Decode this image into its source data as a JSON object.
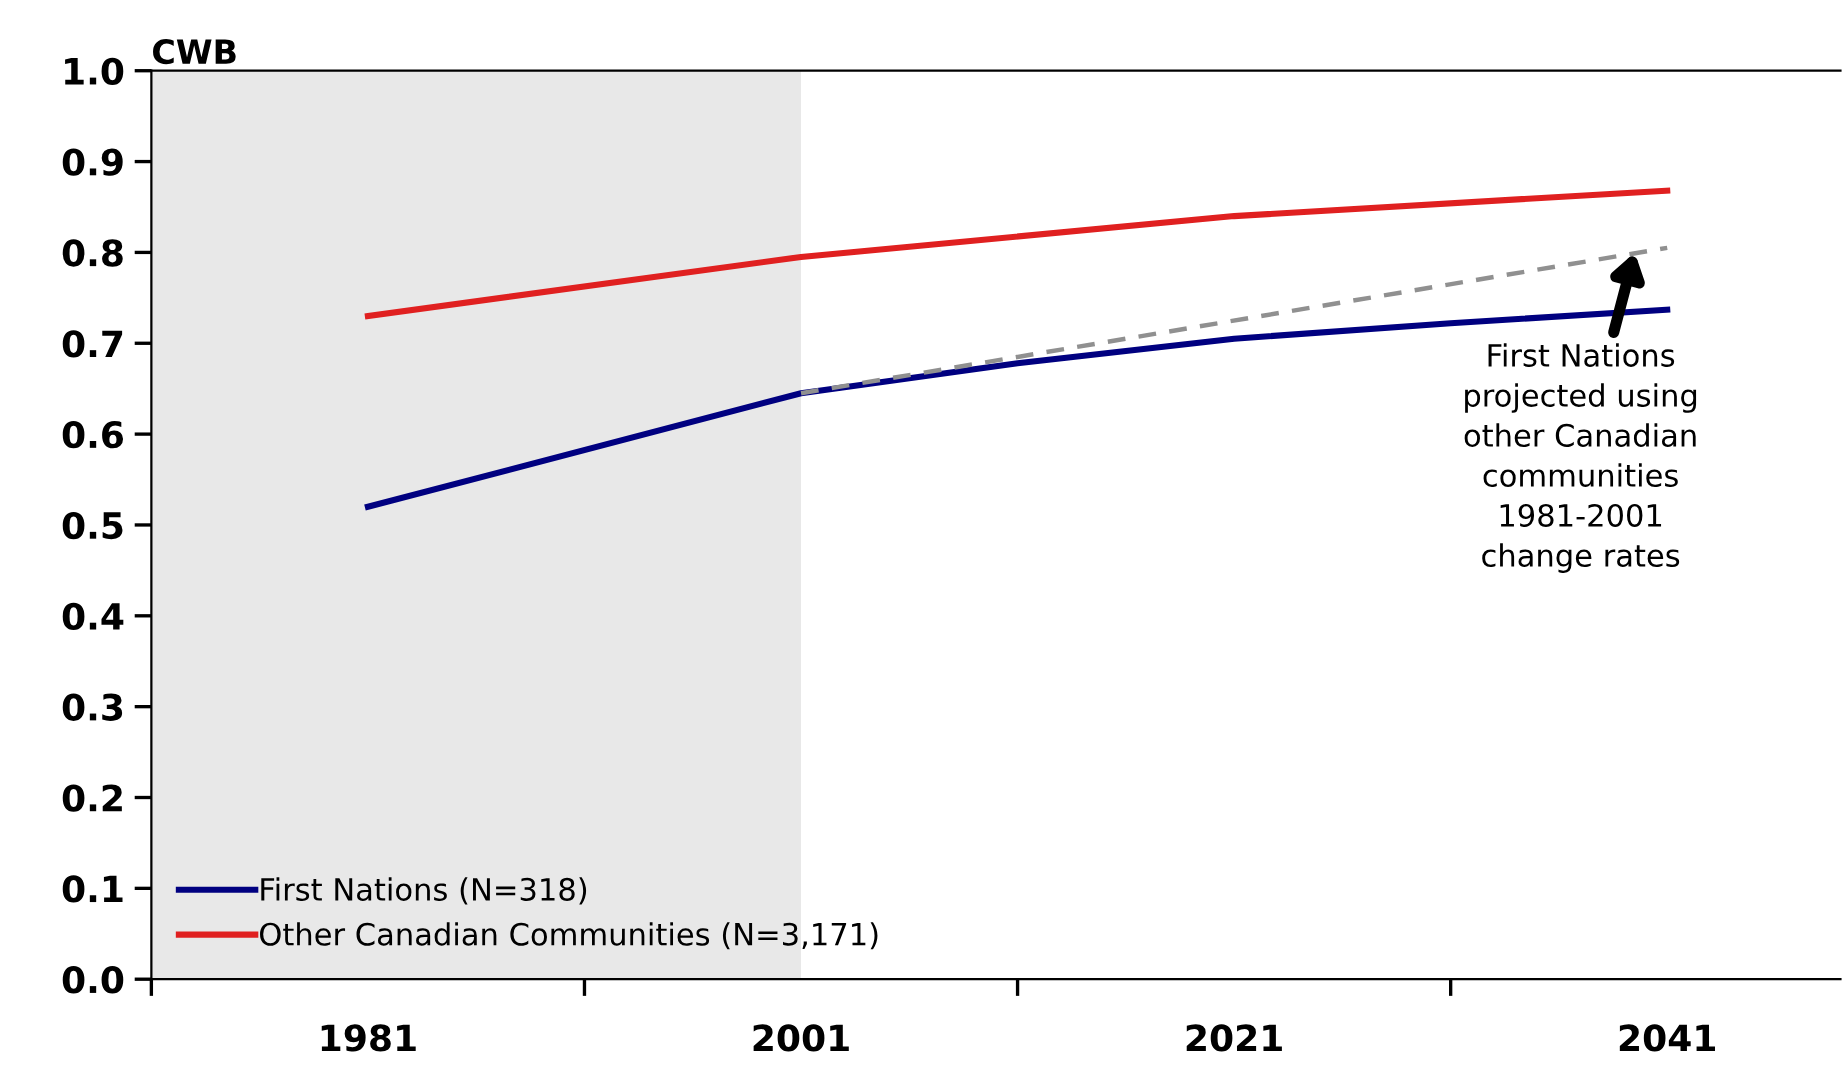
{
  "chart_data": {
    "type": "line",
    "ylabel": "CWB",
    "x": [
      1981,
      2001,
      2011,
      2021,
      2031,
      2041
    ],
    "series": [
      {
        "name": "First Nations (N=318)",
        "color": "#000080",
        "values": [
          0.52,
          0.645,
          0.678,
          0.705,
          0.722,
          0.737
        ]
      },
      {
        "name": "Other Canadian Communities (N=3,171)",
        "color": "#e02020",
        "x": [
          1981,
          2001,
          2021,
          2041
        ],
        "values": [
          0.73,
          0.795,
          0.84,
          0.868
        ]
      },
      {
        "color": "#909090",
        "line_style": "dashed",
        "x": [
          2001,
          2041
        ],
        "values": [
          0.645,
          0.805
        ]
      }
    ],
    "xlim": [
      1971,
      2049
    ],
    "xticks": [
      {
        "value": 1971,
        "label": null
      },
      1981,
      {
        "value": 1991,
        "label": null
      },
      2001,
      {
        "value": 2011,
        "label": null
      },
      2021,
      {
        "value": 2031,
        "label": null
      },
      2041
    ],
    "ylim": [
      0,
      1
    ],
    "yticks": [
      {
        "value": 0,
        "label": "0.0"
      },
      0.1,
      0.2,
      0.3,
      0.4,
      0.5,
      0.6,
      0.7,
      0.8,
      0.9,
      {
        "value": 1,
        "label": "1.0"
      }
    ],
    "bands": [
      {
        "axis": "x",
        "from": 1971,
        "to": 2001,
        "label": null,
        "color": "#e8e8e8"
      }
    ],
    "annotations": [
      {
        "text": "First Nations\nprojected using\nother Canadian\ncommunities\n1981-2001\nchange rates",
        "x": 2039.5,
        "y": 0.8
      }
    ],
    "grid": false,
    "legend": "bottom left"
  }
}
